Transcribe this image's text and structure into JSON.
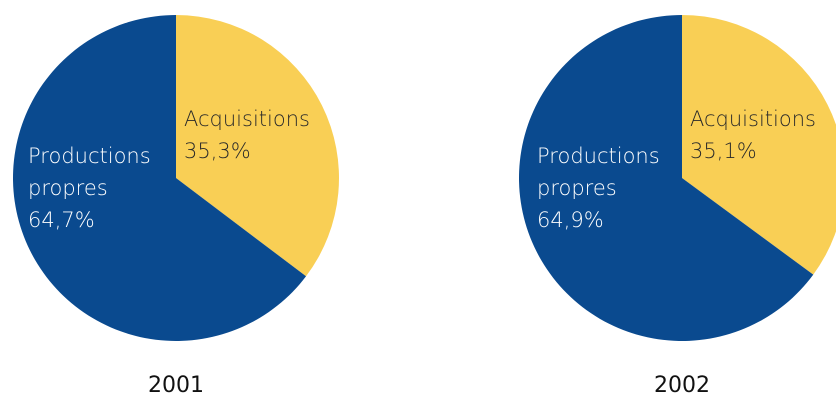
{
  "chart_data": [
    {
      "type": "pie",
      "caption": "2001",
      "start_angle_deg": 0,
      "direction": "clockwise",
      "slices": [
        {
          "name": "Acquisitions",
          "value": 35.3,
          "value_text": "35,3%",
          "color": "#F9CF55",
          "text_color": "#2a2a2a"
        },
        {
          "name": "Productions propres",
          "value": 64.7,
          "value_text": "64,7%",
          "color": "#0A4A8F",
          "text_color": "#ffffff"
        }
      ]
    },
    {
      "type": "pie",
      "caption": "2002",
      "start_angle_deg": 0,
      "direction": "clockwise",
      "slices": [
        {
          "name": "Acquisitions",
          "value": 35.1,
          "value_text": "35,1%",
          "color": "#F9CF55",
          "text_color": "#2a2a2a"
        },
        {
          "name": "Productions propres",
          "value": 64.9,
          "value_text": "64,9%",
          "color": "#0A4A8F",
          "text_color": "#ffffff"
        }
      ]
    }
  ]
}
